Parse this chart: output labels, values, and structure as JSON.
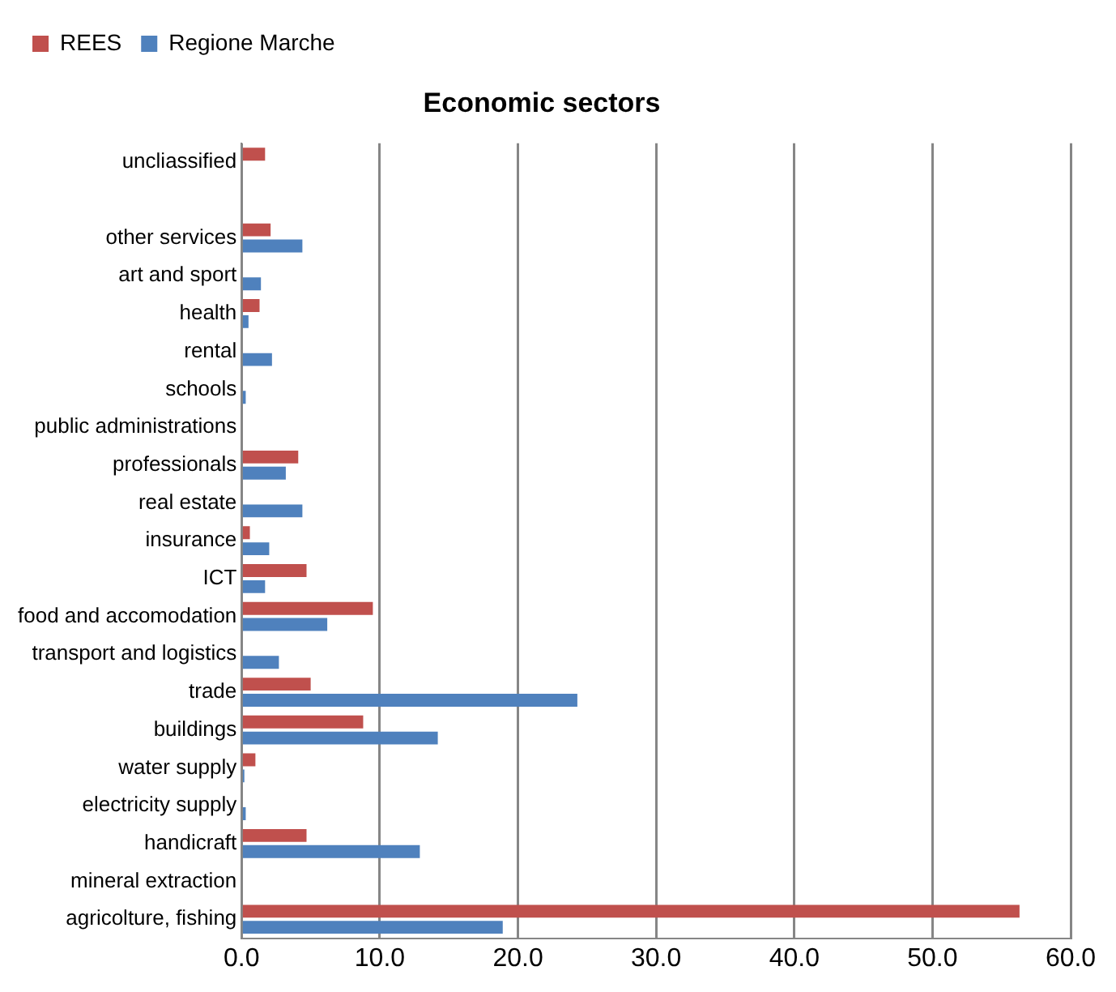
{
  "chart_data": {
    "type": "bar",
    "orientation": "horizontal",
    "title": "Economic sectors",
    "categories": [
      "uncliassified",
      null,
      "other services",
      "art and sport",
      "health",
      "rental",
      "schools",
      "public administrations",
      "professionals",
      "real estate",
      "insurance",
      "ICT",
      "food and accomodation",
      "transport and logistics",
      "trade",
      "buildings",
      "water supply",
      "electricity supply",
      "handicraft",
      "mineral extraction",
      "agricolture, fishing"
    ],
    "series": [
      {
        "name": "REES",
        "color": "#c0504d",
        "values": [
          1.7,
          0,
          2.1,
          0,
          1.3,
          0,
          0,
          0,
          4.1,
          0,
          0.6,
          4.7,
          9.5,
          0,
          5.0,
          8.8,
          1.0,
          0,
          4.7,
          0,
          56.3
        ]
      },
      {
        "name": "Regione Marche",
        "color": "#4f81bd",
        "values": [
          0,
          0,
          4.4,
          1.4,
          0.5,
          2.2,
          0.3,
          0,
          3.2,
          4.4,
          2.0,
          1.7,
          6.2,
          2.7,
          24.3,
          14.2,
          0.2,
          0.3,
          12.9,
          0,
          18.9
        ]
      }
    ],
    "xlim": [
      0,
      60
    ],
    "xticks": [
      {
        "value": 0,
        "label": "0.0"
      },
      {
        "value": 10,
        "label": "10.0"
      },
      {
        "value": 20,
        "label": "20.0"
      },
      {
        "value": 30,
        "label": "30.0"
      },
      {
        "value": 40,
        "label": "40.0"
      },
      {
        "value": 50,
        "label": "50.0"
      },
      {
        "value": 60,
        "label": "60.0"
      }
    ],
    "grid": "x",
    "legend": "top"
  }
}
